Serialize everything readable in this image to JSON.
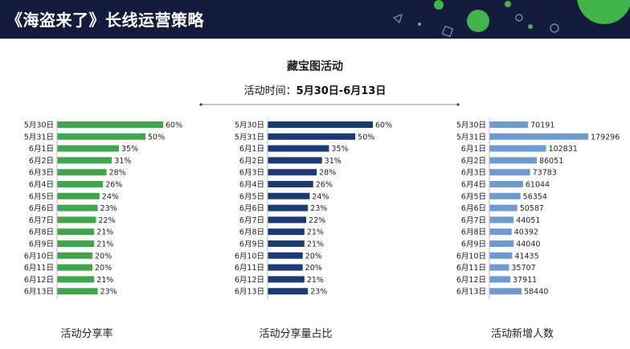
{
  "header": {
    "title": "《海盗来了》长线运营策略"
  },
  "activity": {
    "title": "藏宝图活动",
    "time_label": "活动时间：",
    "time_value": "5月30日-6月13日"
  },
  "colors": {
    "header_bg": "#141b3c",
    "header_accent": "#3fb54a",
    "share_rate": "#3fa64b",
    "share_volume": "#1d3a78",
    "new_users": "#6c9bd2"
  },
  "chart_data": [
    {
      "type": "bar",
      "orientation": "horizontal",
      "categories": [
        "5月30日",
        "5月31日",
        "6月1日",
        "6月2日",
        "6月3日",
        "6月4日",
        "6月5日",
        "6月6日",
        "6月7日",
        "6月8日",
        "6月9日",
        "6月10日",
        "6月11日",
        "6月12日",
        "6月13日"
      ],
      "values": [
        60,
        50,
        35,
        31,
        28,
        26,
        24,
        23,
        22,
        21,
        21,
        20,
        20,
        21,
        23
      ],
      "value_labels": [
        "60%",
        "50%",
        "35%",
        "31%",
        "28%",
        "26%",
        "24%",
        "23%",
        "22%",
        "21%",
        "21%",
        "20%",
        "20%",
        "21%",
        "23%"
      ],
      "xlim": [
        0,
        60
      ],
      "caption": "活动分享率"
    },
    {
      "type": "bar",
      "orientation": "horizontal",
      "categories": [
        "5月30日",
        "5月31日",
        "6月1日",
        "6月2日",
        "6月3日",
        "6月4日",
        "6月5日",
        "6月6日",
        "6月7日",
        "6月8日",
        "6月9日",
        "6月10日",
        "6月11日",
        "6月12日",
        "6月13日"
      ],
      "values": [
        60,
        50,
        35,
        31,
        28,
        26,
        24,
        23,
        22,
        21,
        21,
        20,
        20,
        21,
        23
      ],
      "value_labels": [
        "60%",
        "50%",
        "35%",
        "31%",
        "28%",
        "26%",
        "24%",
        "23%",
        "22%",
        "21%",
        "21%",
        "20%",
        "20%",
        "21%",
        "23%"
      ],
      "xlim": [
        0,
        60
      ],
      "caption": "活动分享量占比"
    },
    {
      "type": "bar",
      "orientation": "horizontal",
      "categories": [
        "5月30日",
        "5月31日",
        "6月1日",
        "6月2日",
        "6月3日",
        "6月4日",
        "6月5日",
        "6月6日",
        "6月7日",
        "6月8日",
        "6月9日",
        "6月10日",
        "6月11日",
        "6月12日",
        "6月13日"
      ],
      "values": [
        70191,
        179296,
        102831,
        86051,
        73783,
        61044,
        56354,
        50587,
        44051,
        40392,
        44040,
        41435,
        35707,
        37911,
        58440
      ],
      "value_labels": [
        "70191",
        "179296",
        "102831",
        "86051",
        "73783",
        "61044",
        "56354",
        "50587",
        "44051",
        "40392",
        "44040",
        "41435",
        "35707",
        "37911",
        "58440"
      ],
      "xlim": [
        0,
        179296
      ],
      "caption": "活动新增人数"
    }
  ]
}
